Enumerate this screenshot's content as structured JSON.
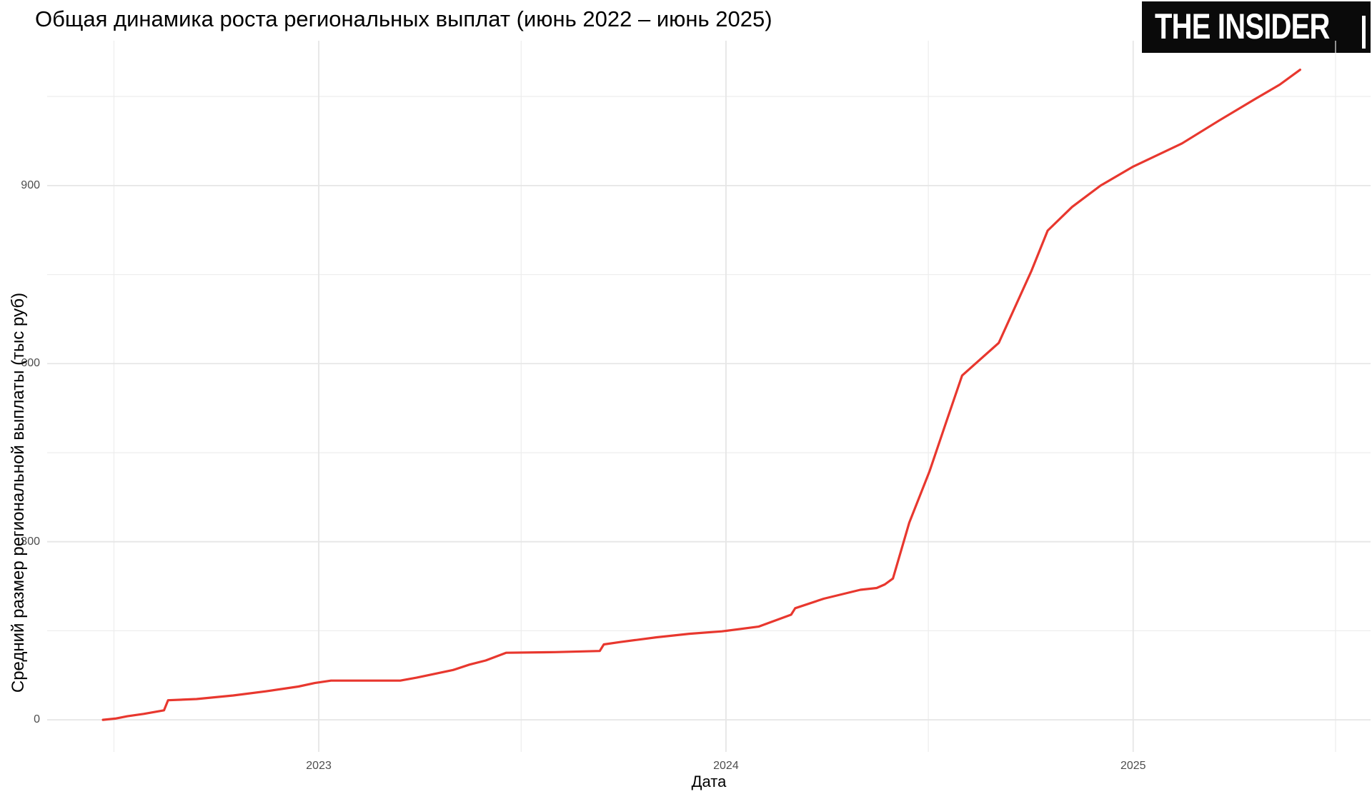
{
  "header": {
    "logo_text": "THE INSIDER"
  },
  "colors": {
    "line_red": "#e8372e",
    "grid_major": "#e6e6e6",
    "grid_minor": "#ededed",
    "tick_text": "#4d4d4d",
    "title_text": "#000000",
    "logo_bg": "#0a0a0a",
    "logo_fg": "#ffffff"
  },
  "chart_data": {
    "type": "line",
    "title": "Общая динамика роста региональных выплат (июнь 2022 – июнь 2025)",
    "xlabel": "Дата",
    "ylabel": "Средний размер региональной выплаты (тыс руб)",
    "xlim": [
      2022.333,
      2025.583
    ],
    "ylim": [
      -54,
      1144
    ],
    "grid": true,
    "legend_position": "none",
    "x_ticks": [
      {
        "value": 2023,
        "label": "2023"
      },
      {
        "value": 2024,
        "label": "2024"
      },
      {
        "value": 2025,
        "label": "2025"
      }
    ],
    "y_ticks": [
      {
        "value": 0,
        "label": "0"
      },
      {
        "value": 300,
        "label": "300"
      },
      {
        "value": 600,
        "label": "600"
      },
      {
        "value": 900,
        "label": "900"
      }
    ],
    "x_minor": [
      2022.497,
      2023.497,
      2024.497,
      2025.497
    ],
    "y_minor": [
      150,
      450,
      750,
      1050
    ],
    "series": [
      {
        "name": "Средний размер региональной выплаты (тыс руб)",
        "color": "#e8372e",
        "x": [
          2022.47,
          2022.5,
          2022.53,
          2022.57,
          2022.62,
          2022.63,
          2022.7,
          2022.79,
          2022.87,
          2022.95,
          2022.99,
          2023.03,
          2023.2,
          2023.24,
          2023.33,
          2023.37,
          2023.41,
          2023.46,
          2023.58,
          2023.69,
          2023.7,
          2023.74,
          2023.83,
          2023.91,
          2023.99,
          2024.08,
          2024.16,
          2024.17,
          2024.24,
          2024.33,
          2024.37,
          2024.39,
          2024.41,
          2024.45,
          2024.5,
          2024.54,
          2024.58,
          2024.67,
          2024.75,
          2024.79,
          2024.85,
          2024.92,
          2025.0,
          2025.12,
          2025.21,
          2025.3,
          2025.36,
          2025.41
        ],
        "y": [
          0,
          2,
          6,
          10,
          16,
          33,
          35,
          41,
          48,
          56,
          62,
          66,
          66,
          71,
          84,
          93,
          100,
          113,
          114,
          116,
          127,
          131,
          139,
          145,
          149,
          157,
          177,
          188,
          204,
          219,
          222,
          228,
          238,
          332,
          419,
          500,
          580,
          635,
          756,
          824,
          864,
          900,
          932,
          971,
          1009,
          1046,
          1070,
          1095
        ]
      }
    ]
  }
}
